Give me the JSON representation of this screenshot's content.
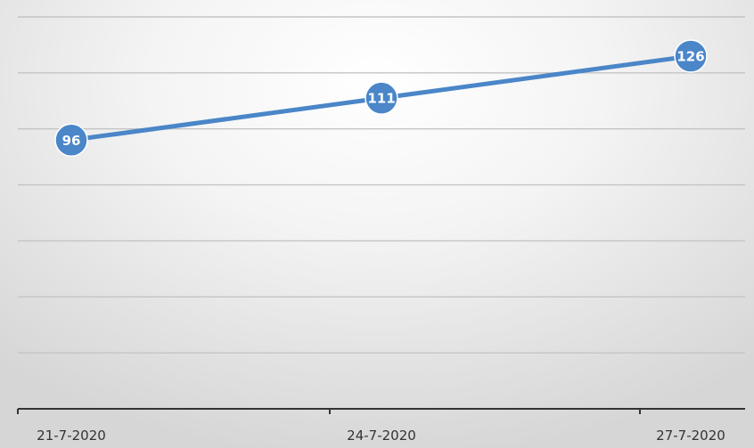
{
  "chart_data": {
    "type": "line",
    "categories": [
      "21-7-2020",
      "24-7-2020",
      "27-7-2020"
    ],
    "series": [
      {
        "values": [
          96,
          111,
          126
        ],
        "color": "#4a86c8"
      }
    ],
    "data_labels": true,
    "grid": true,
    "ylim": [
      0,
      140
    ],
    "legend": "none"
  }
}
